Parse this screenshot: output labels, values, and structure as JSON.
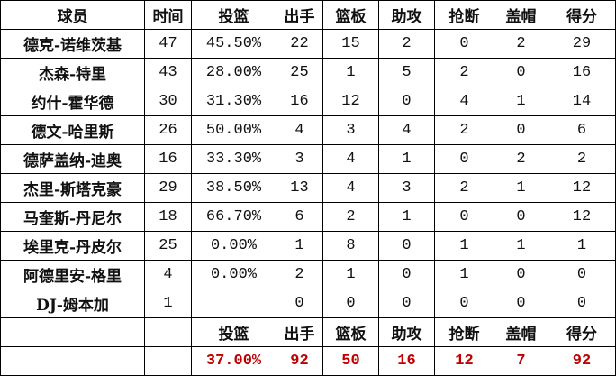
{
  "headers": [
    "球员",
    "时间",
    "投篮",
    "出手",
    "篮板",
    "助攻",
    "抢断",
    "盖帽",
    "得分"
  ],
  "rows": [
    [
      "德克-诺维茨基",
      "47",
      "45.50%",
      "22",
      "15",
      "2",
      "0",
      "2",
      "29"
    ],
    [
      "杰森-特里",
      "43",
      "28.00%",
      "25",
      "1",
      "5",
      "2",
      "0",
      "16"
    ],
    [
      "约什-霍华德",
      "30",
      "31.30%",
      "16",
      "12",
      "0",
      "4",
      "1",
      "14"
    ],
    [
      "德文-哈里斯",
      "26",
      "50.00%",
      "4",
      "3",
      "4",
      "2",
      "0",
      "6"
    ],
    [
      "德萨盖纳-迪奥",
      "16",
      "33.30%",
      "3",
      "4",
      "1",
      "0",
      "2",
      "2"
    ],
    [
      "杰里-斯塔克豪",
      "29",
      "38.50%",
      "13",
      "4",
      "3",
      "2",
      "1",
      "12"
    ],
    [
      "马奎斯-丹尼尔",
      "18",
      "66.70%",
      "6",
      "2",
      "1",
      "0",
      "0",
      "12"
    ],
    [
      "埃里克-丹皮尔",
      "25",
      "0.00%",
      "1",
      "8",
      "0",
      "1",
      "1",
      "1"
    ],
    [
      "阿德里安-格里",
      "4",
      "0.00%",
      "2",
      "1",
      "0",
      "1",
      "0",
      "0"
    ],
    [
      "DJ-姆本加",
      "1",
      "",
      "0",
      "0",
      "0",
      "0",
      "0",
      "0"
    ]
  ],
  "totals_headers": [
    "投篮",
    "出手",
    "篮板",
    "助攻",
    "抢断",
    "盖帽",
    "得分"
  ],
  "totals": [
    "37.00%",
    "92",
    "50",
    "16",
    "12",
    "7",
    "92"
  ],
  "colors": {
    "totals": "#c00000"
  }
}
